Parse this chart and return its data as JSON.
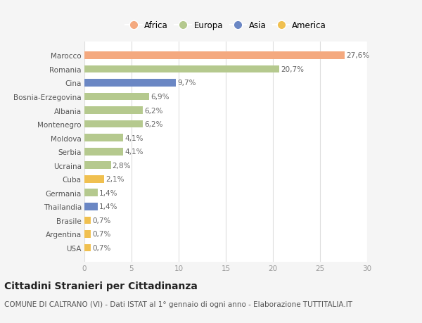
{
  "countries": [
    "Marocco",
    "Romania",
    "Cina",
    "Bosnia-Erzegovina",
    "Albania",
    "Montenegro",
    "Moldova",
    "Serbia",
    "Ucraina",
    "Cuba",
    "Germania",
    "Thailandia",
    "Brasile",
    "Argentina",
    "USA"
  ],
  "values": [
    27.6,
    20.7,
    9.7,
    6.9,
    6.2,
    6.2,
    4.1,
    4.1,
    2.8,
    2.1,
    1.4,
    1.4,
    0.7,
    0.7,
    0.7
  ],
  "labels": [
    "27,6%",
    "20,7%",
    "9,7%",
    "6,9%",
    "6,2%",
    "6,2%",
    "4,1%",
    "4,1%",
    "2,8%",
    "2,1%",
    "1,4%",
    "1,4%",
    "0,7%",
    "0,7%",
    "0,7%"
  ],
  "continents": [
    "Africa",
    "Europa",
    "Asia",
    "Europa",
    "Europa",
    "Europa",
    "Europa",
    "Europa",
    "Europa",
    "America",
    "Europa",
    "Asia",
    "America",
    "America",
    "America"
  ],
  "colors": {
    "Africa": "#F4A97F",
    "Europa": "#B5C98E",
    "Asia": "#6B87C4",
    "America": "#F0C050"
  },
  "bg_color": "#f5f5f5",
  "plot_bg_color": "#ffffff",
  "title": "Cittadini Stranieri per Cittadinanza",
  "subtitle": "COMUNE DI CALTRANO (VI) - Dati ISTAT al 1° gennaio di ogni anno - Elaborazione TUTTITALIA.IT",
  "xlim": [
    0,
    30
  ],
  "xticks": [
    0,
    5,
    10,
    15,
    20,
    25,
    30
  ],
  "legend_order": [
    "Africa",
    "Europa",
    "Asia",
    "America"
  ],
  "label_fontsize": 7.5,
  "tick_fontsize": 7.5,
  "title_fontsize": 10,
  "subtitle_fontsize": 7.5,
  "bar_height": 0.55
}
